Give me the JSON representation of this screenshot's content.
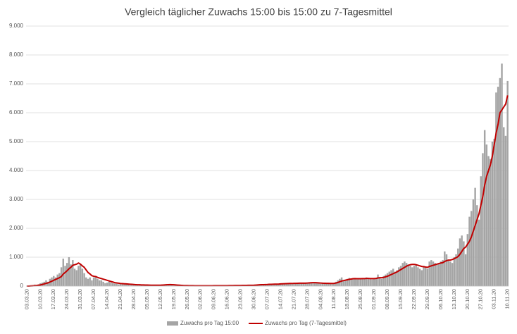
{
  "chart_data": {
    "type": "bar_line",
    "title": "Vergleich täglicher Zuwachs 15:00 bis 15:00 zu 7-Tagesmittel",
    "categories": [
      "03.03.20",
      null,
      null,
      null,
      null,
      null,
      null,
      "10.03.20",
      null,
      null,
      null,
      null,
      null,
      null,
      "17.03.20",
      null,
      null,
      null,
      null,
      null,
      null,
      "24.03.20",
      null,
      null,
      null,
      null,
      null,
      null,
      "31.03.20",
      null,
      null,
      null,
      null,
      null,
      null,
      "07.04.20",
      null,
      null,
      null,
      null,
      null,
      null,
      "14.04.20",
      null,
      null,
      null,
      null,
      null,
      null,
      "21.04.20",
      null,
      null,
      null,
      null,
      null,
      null,
      "28.04.20",
      null,
      null,
      null,
      null,
      null,
      null,
      "05.05.20",
      null,
      null,
      null,
      null,
      null,
      null,
      "12.05.20",
      null,
      null,
      null,
      null,
      null,
      null,
      "19.05.20",
      null,
      null,
      null,
      null,
      null,
      null,
      "26.05.20",
      null,
      null,
      null,
      null,
      null,
      null,
      "02.06.20",
      null,
      null,
      null,
      null,
      null,
      null,
      "09.06.20",
      null,
      null,
      null,
      null,
      null,
      null,
      "16.06.20",
      null,
      null,
      null,
      null,
      null,
      null,
      "23.06.20",
      null,
      null,
      null,
      null,
      null,
      null,
      "30.06.20",
      null,
      null,
      null,
      null,
      null,
      null,
      "07.07.20",
      null,
      null,
      null,
      null,
      null,
      null,
      "14.07.20",
      null,
      null,
      null,
      null,
      null,
      null,
      "21.07.20",
      null,
      null,
      null,
      null,
      null,
      null,
      "28.07.20",
      null,
      null,
      null,
      null,
      null,
      null,
      "04.08.20",
      null,
      null,
      null,
      null,
      null,
      null,
      "11.08.20",
      null,
      null,
      null,
      null,
      null,
      null,
      "18.08.20",
      null,
      null,
      null,
      null,
      null,
      null,
      "25.08.20",
      null,
      null,
      null,
      null,
      null,
      null,
      "01.09.20",
      null,
      null,
      null,
      null,
      null,
      null,
      "08.09.20",
      null,
      null,
      null,
      null,
      null,
      null,
      "15.09.20",
      null,
      null,
      null,
      null,
      null,
      null,
      "22.09.20",
      null,
      null,
      null,
      null,
      null,
      null,
      "29.09.20",
      null,
      null,
      null,
      null,
      null,
      null,
      "06.10.20",
      null,
      null,
      null,
      null,
      null,
      null,
      "13.10.20",
      null,
      null,
      null,
      null,
      null,
      null,
      "20.10.20",
      null,
      null,
      null,
      null,
      null,
      null,
      "27.10.20",
      null,
      null,
      null,
      null,
      null,
      null,
      "03.11.20",
      null,
      null,
      null,
      null,
      null,
      null,
      "10.11.20"
    ],
    "series": [
      {
        "name": "Zuwachs pro Tag 15:00",
        "kind": "bar",
        "color": "#a5a5a5",
        "values": [
          0,
          0,
          20,
          30,
          50,
          40,
          60,
          100,
          120,
          150,
          200,
          150,
          250,
          300,
          350,
          300,
          400,
          450,
          650,
          950,
          700,
          800,
          1000,
          750,
          900,
          600,
          550,
          700,
          750,
          600,
          450,
          300,
          250,
          300,
          200,
          300,
          350,
          250,
          200,
          200,
          150,
          100,
          120,
          150,
          130,
          100,
          90,
          80,
          60,
          80,
          70,
          60,
          60,
          50,
          40,
          40,
          50,
          60,
          40,
          40,
          30,
          20,
          30,
          30,
          40,
          40,
          30,
          20,
          20,
          20,
          40,
          40,
          60,
          60,
          50,
          40,
          30,
          20,
          20,
          20,
          20,
          15,
          15,
          15,
          20,
          15,
          15,
          10,
          10,
          15,
          10,
          10,
          15,
          20,
          10,
          10,
          10,
          15,
          15,
          20,
          15,
          10,
          10,
          15,
          20,
          20,
          25,
          20,
          15,
          20,
          25,
          20,
          25,
          30,
          25,
          20,
          25,
          30,
          35,
          40,
          50,
          60,
          50,
          40,
          50,
          60,
          60,
          70,
          60,
          70,
          80,
          70,
          60,
          80,
          90,
          80,
          100,
          90,
          80,
          90,
          100,
          90,
          110,
          100,
          90,
          100,
          110,
          120,
          130,
          110,
          120,
          130,
          100,
          90,
          80,
          90,
          100,
          110,
          90,
          80,
          80,
          100,
          150,
          200,
          250,
          300,
          200,
          180,
          250,
          280,
          260,
          270,
          250,
          230,
          240,
          260,
          280,
          250,
          300,
          270,
          240,
          230,
          250,
          280,
          400,
          300,
          250,
          350,
          400,
          450,
          500,
          550,
          600,
          500,
          550,
          650,
          700,
          800,
          850,
          800,
          750,
          700,
          650,
          700,
          750,
          650,
          600,
          550,
          700,
          650,
          600,
          850,
          900,
          850,
          800,
          750,
          800,
          850,
          900,
          1200,
          1100,
          900,
          850,
          800,
          1000,
          1100,
          1300,
          1650,
          1750,
          1550,
          1100,
          1800,
          2400,
          2600,
          3000,
          3400,
          2800,
          2300,
          3800,
          4600,
          5400,
          4900,
          4500,
          4400,
          5000,
          5100,
          6700,
          6900,
          7200,
          7700,
          5500,
          5200,
          7100
        ]
      },
      {
        "name": "Zuwachs pro Tag (7-Tagesmittel)",
        "kind": "line",
        "color": "#c00000",
        "values": [
          0,
          0,
          5,
          10,
          15,
          20,
          30,
          40,
          55,
          75,
          95,
          110,
          140,
          170,
          200,
          230,
          260,
          290,
          330,
          420,
          470,
          530,
          600,
          650,
          720,
          740,
          760,
          800,
          760,
          700,
          650,
          560,
          470,
          420,
          360,
          340,
          330,
          300,
          280,
          260,
          240,
          220,
          200,
          180,
          160,
          140,
          120,
          110,
          100,
          90,
          85,
          80,
          75,
          70,
          65,
          60,
          55,
          50,
          45,
          45,
          40,
          40,
          38,
          36,
          34,
          32,
          30,
          30,
          30,
          30,
          32,
          35,
          40,
          45,
          50,
          52,
          50,
          45,
          40,
          35,
          30,
          25,
          20,
          18,
          17,
          16,
          15,
          14,
          13,
          13,
          13,
          13,
          13,
          13,
          13,
          13,
          13,
          13,
          14,
          15,
          15,
          15,
          15,
          15,
          15,
          16,
          17,
          18,
          19,
          20,
          20,
          21,
          22,
          23,
          24,
          25,
          26,
          27,
          28,
          30,
          35,
          40,
          45,
          48,
          50,
          52,
          55,
          60,
          62,
          64,
          66,
          68,
          70,
          75,
          80,
          82,
          85,
          88,
          90,
          90,
          95,
          95,
          98,
          100,
          100,
          100,
          100,
          105,
          110,
          115,
          118,
          120,
          115,
          110,
          105,
          100,
          98,
          95,
          95,
          92,
          90,
          95,
          105,
          125,
          150,
          175,
          190,
          205,
          220,
          235,
          245,
          255,
          260,
          255,
          255,
          255,
          260,
          260,
          265,
          265,
          260,
          260,
          260,
          265,
          280,
          290,
          290,
          300,
          320,
          340,
          370,
          400,
          430,
          460,
          490,
          530,
          570,
          610,
          650,
          690,
          720,
          740,
          750,
          750,
          740,
          720,
          700,
          680,
          670,
          660,
          650,
          680,
          700,
          720,
          740,
          760,
          780,
          800,
          810,
          850,
          880,
          900,
          900,
          920,
          950,
          980,
          1020,
          1100,
          1200,
          1300,
          1350,
          1450,
          1550,
          1700,
          1900,
          2100,
          2300,
          2500,
          2800,
          3100,
          3500,
          3800,
          4000,
          4200,
          4500,
          4900,
          5300,
          5600,
          6000,
          6100,
          6200,
          6300,
          6600
        ]
      }
    ],
    "ylim": [
      0,
      9000
    ],
    "yticks": [
      0,
      {
        "value": 1000,
        "label": "1.000"
      },
      {
        "value": 2000,
        "label": "2.000"
      },
      {
        "value": 3000,
        "label": "3.000"
      },
      {
        "value": 4000,
        "label": "4.000"
      },
      {
        "value": 5000,
        "label": "5.000"
      },
      {
        "value": 6000,
        "label": "6.000"
      },
      {
        "value": 7000,
        "label": "7.000"
      },
      {
        "value": 8000,
        "label": "8.000"
      },
      {
        "value": 9000,
        "label": "9.000"
      }
    ],
    "grid": true,
    "legend": "bottom"
  }
}
